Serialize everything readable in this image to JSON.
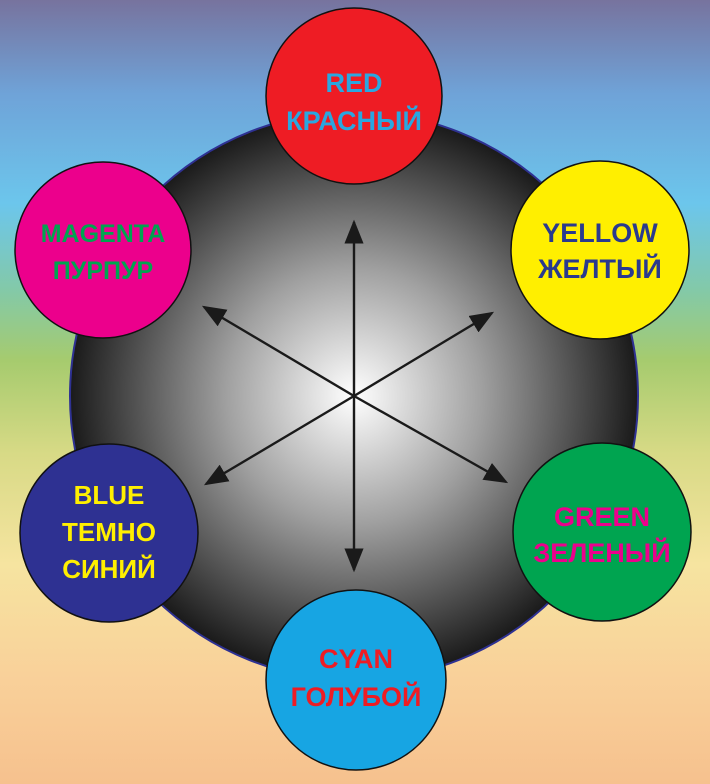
{
  "nodes": {
    "red": {
      "line1": "RED",
      "line2": "КРАСНЫЙ",
      "fill": "#ee1c24",
      "text_color": "#2aa7e0"
    },
    "yellow": {
      "line1": "YELLOW",
      "line2": "ЖЕЛТЫЙ",
      "fill": "#ffef00",
      "text_color": "#2a3a8e"
    },
    "green": {
      "line1": "GREEN",
      "line2": "ЗЕЛЕНЫЙ",
      "fill": "#00a450",
      "text_color": "#ec008c"
    },
    "cyan": {
      "line1": "CYAN",
      "line2": "ГОЛУБОЙ",
      "fill": "#17a5e3",
      "text_color": "#ee1c24"
    },
    "blue": {
      "line1": "BLUE",
      "line2": "ТЕМНО",
      "line3": "СИНИЙ",
      "fill": "#2e3192",
      "text_color": "#ffef00"
    },
    "magenta": {
      "line1": "MAGENTA",
      "line2": "ПУРПУР",
      "fill": "#ec008c",
      "text_color": "#00a450"
    }
  },
  "colors": {
    "sphere_light": "#ffffff",
    "sphere_dark": "#1a1a1a",
    "outline": "#2e3192",
    "arrow": "#1a1a1a"
  }
}
